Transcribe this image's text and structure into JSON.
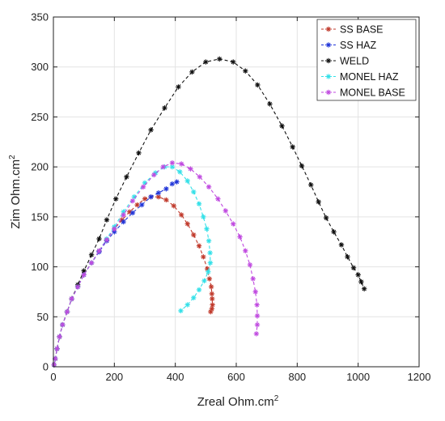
{
  "chart_data": {
    "type": "scatter",
    "xlabel": "Zreal Ohm.cm",
    "xlabel_sup": "2",
    "ylabel": "Zim Ohm.cm",
    "ylabel_sup": "2",
    "xlim": [
      0,
      1200
    ],
    "ylim": [
      0,
      350
    ],
    "xticks": [
      "0",
      "200",
      "400",
      "600",
      "800",
      "1000",
      "1200"
    ],
    "yticks": [
      "0",
      "50",
      "100",
      "150",
      "200",
      "250",
      "300",
      "350"
    ],
    "grid": true,
    "legend_position": "top-right",
    "series": [
      {
        "name": "SS BASE",
        "color": "#c0392b",
        "marker": "asterisk",
        "x": [
          2,
          6,
          12,
          20,
          30,
          45,
          60,
          80,
          100,
          125,
          150,
          175,
          200,
          225,
          250,
          275,
          300,
          320,
          345,
          370,
          395,
          420,
          440,
          460,
          478,
          492,
          505,
          512,
          518,
          520,
          521,
          522,
          520,
          516
        ],
        "y": [
          2,
          8,
          18,
          30,
          42,
          55,
          68,
          80,
          92,
          104,
          116,
          127,
          138,
          147,
          155,
          162,
          168,
          170,
          170,
          167,
          161,
          152,
          143,
          132,
          121,
          110,
          98,
          88,
          80,
          73,
          68,
          62,
          58,
          55
        ]
      },
      {
        "name": "SS HAZ",
        "color": "#2035d8",
        "marker": "asterisk",
        "x": [
          2,
          6,
          12,
          20,
          30,
          45,
          60,
          80,
          100,
          125,
          150,
          175,
          200,
          230,
          260,
          290,
          320,
          345,
          370,
          390,
          405
        ],
        "y": [
          2,
          8,
          18,
          30,
          42,
          55,
          68,
          80,
          92,
          104,
          115,
          126,
          135,
          145,
          154,
          162,
          170,
          174,
          178,
          183,
          185
        ]
      },
      {
        "name": "WELD",
        "color": "#111111",
        "marker": "asterisk",
        "x": [
          2,
          6,
          12,
          20,
          30,
          45,
          60,
          80,
          100,
          125,
          150,
          175,
          205,
          240,
          280,
          320,
          365,
          410,
          455,
          500,
          545,
          590,
          630,
          670,
          710,
          750,
          785,
          815,
          845,
          870,
          895,
          920,
          945,
          965,
          985,
          1000,
          1010,
          1020
        ],
        "y": [
          2,
          8,
          18,
          30,
          42,
          55,
          68,
          82,
          96,
          112,
          128,
          147,
          168,
          190,
          214,
          237,
          259,
          280,
          295,
          305,
          308,
          305,
          296,
          282,
          263,
          241,
          220,
          201,
          182,
          165,
          149,
          135,
          122,
          110,
          99,
          92,
          85,
          78
        ]
      },
      {
        "name": "MONEL HAZ",
        "color": "#33e0e8",
        "marker": "asterisk",
        "x": [
          2,
          6,
          12,
          20,
          30,
          45,
          60,
          80,
          100,
          125,
          150,
          175,
          200,
          230,
          265,
          300,
          335,
          365,
          390,
          415,
          440,
          460,
          478,
          492,
          503,
          510,
          514,
          515,
          508,
          495,
          478,
          460,
          440,
          418
        ],
        "y": [
          2,
          8,
          18,
          30,
          42,
          55,
          68,
          80,
          92,
          104,
          116,
          128,
          140,
          155,
          170,
          184,
          194,
          200,
          200,
          195,
          186,
          175,
          163,
          150,
          138,
          126,
          114,
          104,
          95,
          86,
          77,
          69,
          62,
          56
        ]
      },
      {
        "name": "MONEL BASE",
        "color": "#c04ae0",
        "marker": "asterisk",
        "x": [
          2,
          6,
          12,
          20,
          30,
          45,
          60,
          80,
          100,
          125,
          150,
          175,
          200,
          230,
          260,
          295,
          330,
          360,
          390,
          420,
          450,
          480,
          510,
          540,
          565,
          590,
          612,
          630,
          645,
          655,
          663,
          668,
          669,
          669,
          666
        ],
        "y": [
          2,
          8,
          18,
          30,
          42,
          55,
          68,
          80,
          92,
          104,
          116,
          127,
          138,
          152,
          166,
          180,
          192,
          200,
          204,
          203,
          198,
          190,
          180,
          168,
          156,
          143,
          130,
          116,
          102,
          88,
          75,
          62,
          51,
          42,
          33
        ]
      }
    ]
  }
}
